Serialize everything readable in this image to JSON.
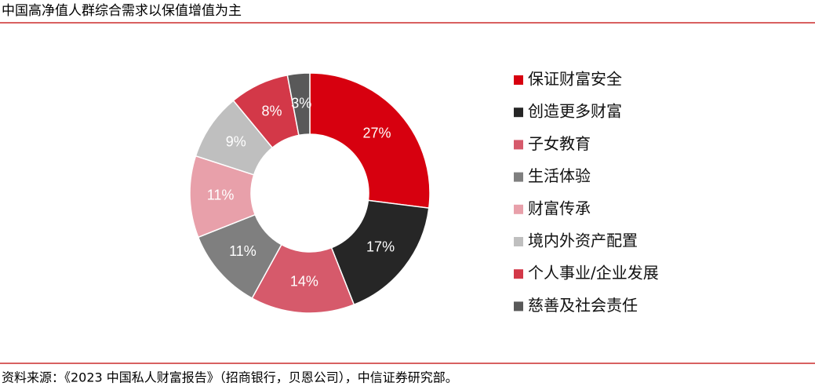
{
  "chart_data": {
    "type": "donut",
    "title": "中国高净值人群综合需求以保值增值为主",
    "source": "资料来源：《2023 中国私人财富报告》（招商银行，贝恩公司），中信证券研究部。",
    "categories": [
      "保证财富安全",
      "创造更多财富",
      "子女教育",
      "生活体验",
      "财富传承",
      "境内外资产配置",
      "个人事业/企业发展",
      "慈善及社会责任"
    ],
    "values": [
      27,
      17,
      14,
      11,
      11,
      9,
      8,
      3
    ],
    "value_labels": [
      "27%",
      "17%",
      "14%",
      "11%",
      "11%",
      "9%",
      "8%",
      "3%"
    ],
    "colors": [
      "#d7000f",
      "#262626",
      "#d65a6b",
      "#7f7f7f",
      "#e8a0aa",
      "#bfbfbf",
      "#d33848",
      "#595959"
    ],
    "legend": "right"
  }
}
